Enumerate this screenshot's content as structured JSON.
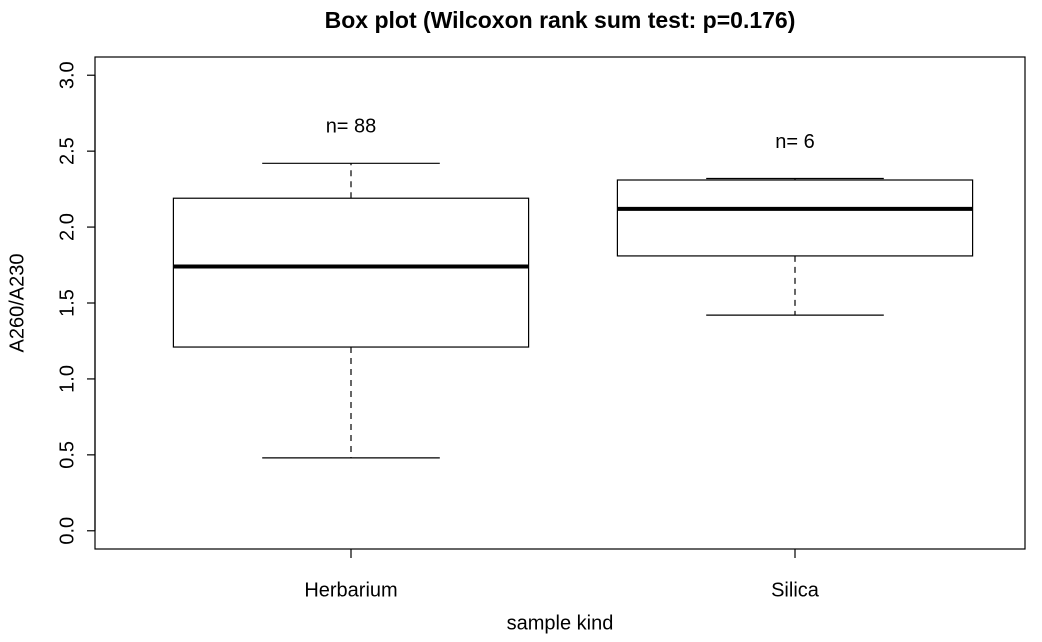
{
  "chart_data": {
    "type": "box",
    "title": "Box plot (Wilcoxon rank sum test: p=0.176)",
    "x_label": "sample kind",
    "y_label": "A260/A230",
    "categories": [
      "Herbarium",
      "Silica"
    ],
    "boxes": [
      {
        "min": 0.48,
        "q1": 1.21,
        "median": 1.74,
        "q3": 2.19,
        "max": 2.42
      },
      {
        "min": 1.42,
        "q1": 1.81,
        "median": 2.12,
        "q3": 2.31,
        "max": 2.32
      }
    ],
    "annotations": [
      "n= 88",
      "n= 6"
    ],
    "color": "#000000",
    "ylim": [
      -0.12,
      3.12
    ],
    "yticks": [
      {
        "value": 0,
        "label": "0.0"
      },
      {
        "value": 0.5,
        "label": "0.5"
      },
      {
        "value": 1,
        "label": "1.0"
      },
      {
        "value": 1.5,
        "label": "1.5"
      },
      {
        "value": 2,
        "label": "2.0"
      },
      {
        "value": 2.5,
        "label": "2.5"
      },
      {
        "value": 3,
        "label": "3.0"
      }
    ]
  }
}
